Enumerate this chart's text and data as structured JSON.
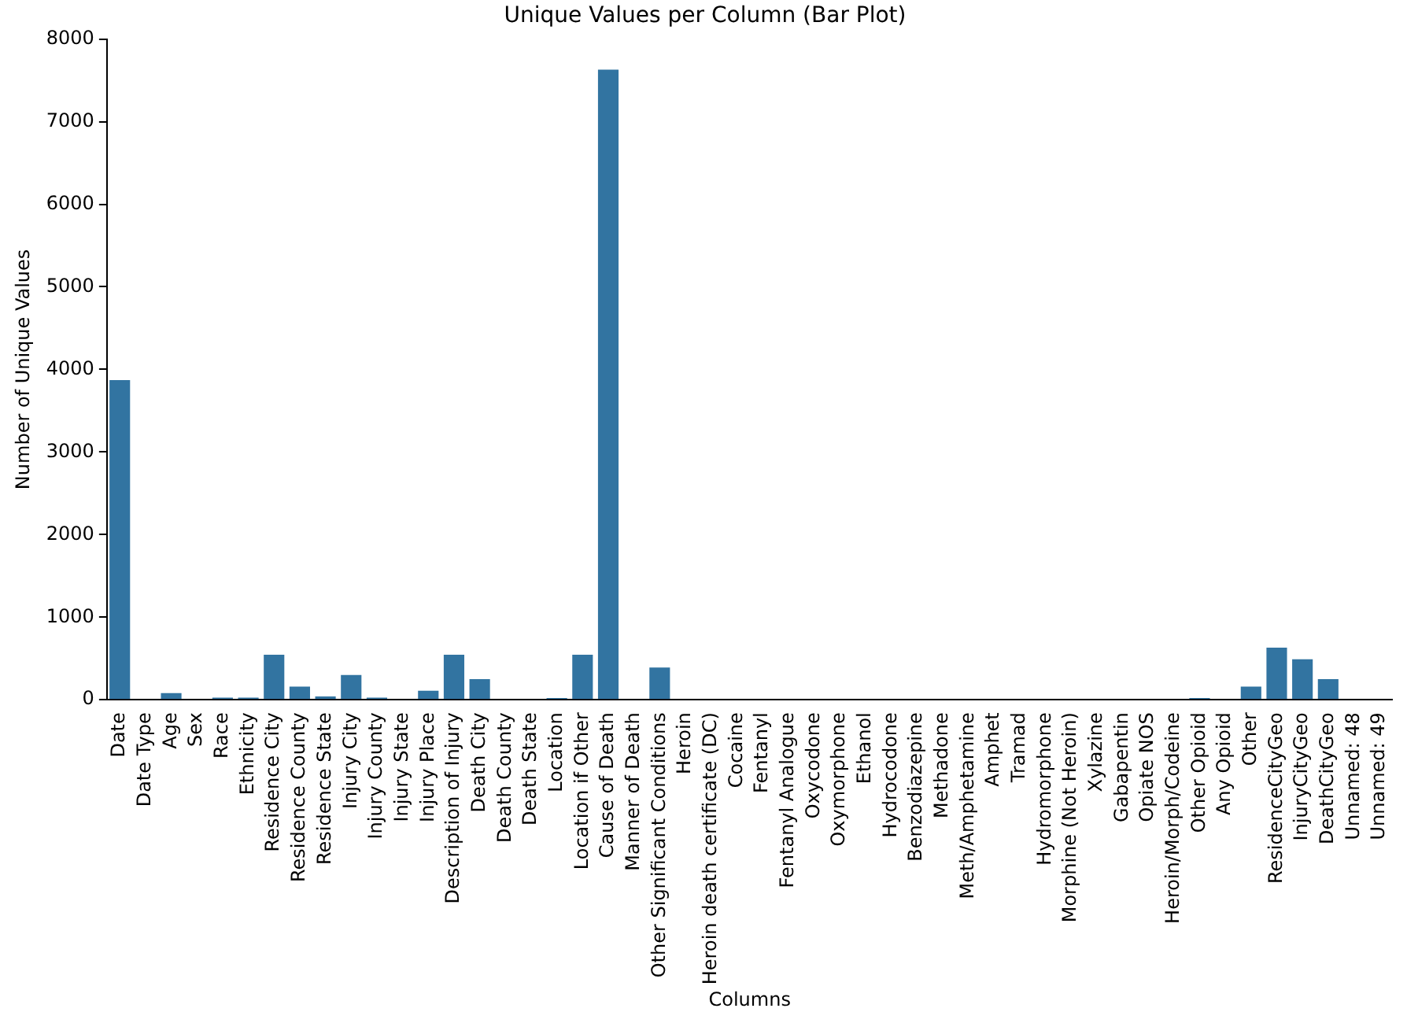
{
  "chart_data": {
    "type": "bar",
    "title": "Unique Values per Column (Bar Plot)",
    "xlabel": "Columns",
    "ylabel": "Number of Unique Values",
    "categories": [
      "Date",
      "Date Type",
      "Age",
      "Sex",
      "Race",
      "Ethnicity",
      "Residence City",
      "Residence County",
      "Residence State",
      "Injury City",
      "Injury County",
      "Injury State",
      "Injury Place",
      "Description of Injury",
      "Death City",
      "Death County",
      "Death State",
      "Location",
      "Location if Other",
      "Cause of Death",
      "Manner of Death",
      "Other Significant Conditions",
      "Heroin",
      "Heroin death certificate (DC)",
      "Cocaine",
      "Fentanyl",
      "Fentanyl Analogue",
      "Oxycodone",
      "Oxymorphone",
      "Ethanol",
      "Hydrocodone",
      "Benzodiazepine",
      "Methadone",
      "Meth/Amphetamine",
      "Amphet",
      "Tramad",
      "Hydromorphone",
      "Morphine (Not Heroin)",
      "Xylazine",
      "Gabapentin",
      "Opiate NOS",
      "Heroin/Morph/Codeine",
      "Other Opioid",
      "Any Opioid",
      "Other",
      "ResidenceCityGeo",
      "InjuryCityGeo",
      "DeathCityGeo",
      "Unnamed: 48",
      "Unnamed: 49"
    ],
    "values": [
      3870,
      0,
      80,
      0,
      25,
      25,
      545,
      160,
      40,
      300,
      25,
      0,
      110,
      545,
      250,
      0,
      0,
      20,
      545,
      7630,
      0,
      390,
      0,
      0,
      0,
      0,
      0,
      0,
      0,
      0,
      0,
      0,
      0,
      0,
      0,
      0,
      0,
      0,
      0,
      0,
      0,
      0,
      20,
      0,
      160,
      630,
      490,
      250,
      0,
      0
    ],
    "color": "#3274a1",
    "ylim": [
      0,
      8000
    ],
    "yticks": [
      0,
      1000,
      2000,
      3000,
      4000,
      5000,
      6000,
      7000,
      8000
    ],
    "grid": false,
    "legend": false
  }
}
